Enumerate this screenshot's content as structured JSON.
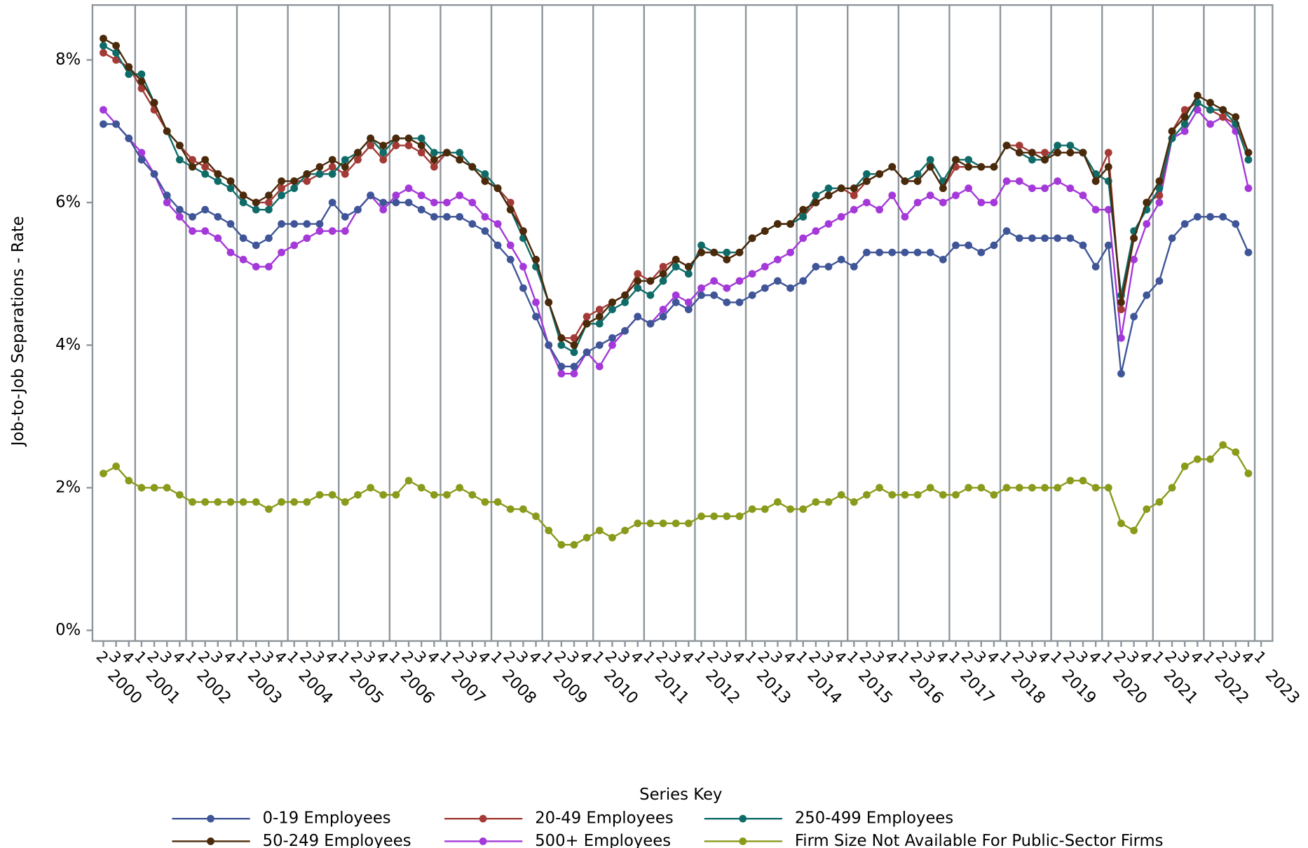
{
  "chart_data": {
    "type": "line",
    "y_label": "Job-to-Job Separations - Rate",
    "legend_title": "Series Key",
    "categories": [
      "2",
      "3",
      "4",
      "1",
      "2",
      "3",
      "4",
      "1",
      "2",
      "3",
      "4",
      "1",
      "2",
      "3",
      "4",
      "1",
      "2",
      "3",
      "4",
      "1",
      "2",
      "3",
      "4",
      "1",
      "2",
      "3",
      "4",
      "1",
      "2",
      "3",
      "4",
      "1",
      "2",
      "3",
      "4",
      "1",
      "2",
      "3",
      "4",
      "1",
      "2",
      "3",
      "4",
      "1",
      "2",
      "3",
      "4",
      "1",
      "2",
      "3",
      "4",
      "1",
      "2",
      "3",
      "4",
      "1",
      "2",
      "3",
      "4",
      "1",
      "2",
      "3",
      "4",
      "1",
      "2",
      "3",
      "4",
      "1",
      "2",
      "3",
      "4",
      "1",
      "2",
      "3",
      "4",
      "1",
      "2",
      "3",
      "4",
      "1",
      "2",
      "3",
      "4",
      "1",
      "2",
      "3",
      "4",
      "1",
      "2",
      "3",
      "4",
      "1"
    ],
    "years": [
      "2000",
      "2001",
      "2002",
      "2003",
      "2004",
      "2005",
      "2006",
      "2007",
      "2008",
      "2009",
      "2010",
      "2011",
      "2012",
      "2013",
      "2014",
      "2015",
      "2016",
      "2017",
      "2018",
      "2019",
      "2020",
      "2021",
      "2022",
      "2023"
    ],
    "ylim": [
      -0.15,
      8.77
    ],
    "yticks": [
      {
        "value": 0,
        "label": "0%"
      },
      {
        "value": 2,
        "label": "2%"
      },
      {
        "value": 4,
        "label": "4%"
      },
      {
        "value": 6,
        "label": "6%"
      },
      {
        "value": 8,
        "label": "8%"
      }
    ],
    "series": [
      {
        "name": "0-19 Employees",
        "color": "#3f5597",
        "values": [
          7.1,
          7.1,
          6.9,
          6.6,
          6.4,
          6.1,
          5.9,
          5.8,
          5.9,
          5.8,
          5.7,
          5.5,
          5.4,
          5.5,
          5.7,
          5.7,
          5.7,
          5.7,
          6.0,
          5.8,
          5.9,
          6.1,
          6.0,
          6.0,
          6.0,
          5.9,
          5.8,
          5.8,
          5.8,
          5.7,
          5.6,
          5.4,
          5.2,
          4.8,
          4.4,
          4.0,
          3.7,
          3.7,
          3.9,
          4.0,
          4.1,
          4.2,
          4.4,
          4.3,
          4.4,
          4.6,
          4.5,
          4.7,
          4.7,
          4.6,
          4.6,
          4.7,
          4.8,
          4.9,
          4.8,
          4.9,
          5.1,
          5.1,
          5.2,
          5.1,
          5.3,
          5.3,
          5.3,
          5.3,
          5.3,
          5.3,
          5.2,
          5.4,
          5.4,
          5.3,
          5.4,
          5.6,
          5.5,
          5.5,
          5.5,
          5.5,
          5.5,
          5.4,
          5.1,
          5.4,
          3.6,
          4.4,
          4.7,
          4.9,
          5.5,
          5.7,
          5.8,
          5.8,
          5.8,
          5.7,
          5.3,
          null
        ]
      },
      {
        "name": "20-49 Employees",
        "color": "#a33a36",
        "values": [
          8.1,
          8.0,
          7.9,
          7.6,
          7.3,
          7.0,
          6.8,
          6.6,
          6.5,
          6.4,
          6.3,
          6.1,
          6.0,
          6.0,
          6.2,
          6.3,
          6.3,
          6.4,
          6.5,
          6.4,
          6.6,
          6.8,
          6.6,
          6.8,
          6.8,
          6.7,
          6.5,
          6.7,
          6.6,
          6.5,
          6.3,
          6.2,
          6.0,
          5.6,
          5.2,
          4.6,
          4.1,
          4.1,
          4.4,
          4.5,
          4.6,
          4.7,
          5.0,
          4.9,
          5.1,
          5.2,
          5.1,
          5.3,
          5.3,
          5.2,
          5.3,
          5.5,
          5.6,
          5.7,
          5.7,
          5.8,
          6.0,
          6.1,
          6.2,
          6.1,
          6.3,
          6.4,
          6.5,
          6.3,
          6.3,
          6.5,
          6.2,
          6.5,
          6.5,
          6.5,
          6.5,
          6.8,
          6.8,
          6.7,
          6.7,
          6.7,
          6.7,
          6.7,
          6.3,
          6.7,
          4.5,
          5.5,
          6.0,
          6.1,
          7.0,
          7.3,
          7.4,
          7.3,
          7.2,
          7.1,
          6.7,
          null
        ]
      },
      {
        "name": "250-499 Employees",
        "color": "#0e6b68",
        "values": [
          8.2,
          8.1,
          7.8,
          7.8,
          7.4,
          7.0,
          6.6,
          6.5,
          6.4,
          6.3,
          6.2,
          6.0,
          5.9,
          5.9,
          6.1,
          6.2,
          6.4,
          6.4,
          6.4,
          6.6,
          6.7,
          6.9,
          6.7,
          6.9,
          6.9,
          6.9,
          6.7,
          6.7,
          6.7,
          6.5,
          6.4,
          6.2,
          5.9,
          5.5,
          5.1,
          4.6,
          4.0,
          3.9,
          4.3,
          4.3,
          4.5,
          4.6,
          4.8,
          4.7,
          4.9,
          5.1,
          5.0,
          5.4,
          5.3,
          5.3,
          5.3,
          5.5,
          5.6,
          5.7,
          5.7,
          5.8,
          6.1,
          6.2,
          6.2,
          6.2,
          6.4,
          6.4,
          6.5,
          6.3,
          6.4,
          6.6,
          6.3,
          6.6,
          6.6,
          6.5,
          6.5,
          6.8,
          6.7,
          6.6,
          6.6,
          6.8,
          6.8,
          6.7,
          6.4,
          6.3,
          4.7,
          5.6,
          5.9,
          6.2,
          6.9,
          7.1,
          7.4,
          7.3,
          7.3,
          7.1,
          6.6,
          null
        ]
      },
      {
        "name": "50-249 Employees",
        "color": "#4a2a0a",
        "values": [
          8.3,
          8.2,
          7.9,
          7.7,
          7.4,
          7.0,
          6.8,
          6.5,
          6.6,
          6.4,
          6.3,
          6.1,
          6.0,
          6.1,
          6.3,
          6.3,
          6.4,
          6.5,
          6.6,
          6.5,
          6.7,
          6.9,
          6.8,
          6.9,
          6.9,
          6.8,
          6.6,
          6.7,
          6.6,
          6.5,
          6.3,
          6.2,
          5.9,
          5.6,
          5.2,
          4.6,
          4.1,
          4.0,
          4.3,
          4.4,
          4.6,
          4.7,
          4.9,
          4.9,
          5.0,
          5.2,
          5.1,
          5.3,
          5.3,
          5.2,
          5.3,
          5.5,
          5.6,
          5.7,
          5.7,
          5.9,
          6.0,
          6.1,
          6.2,
          6.2,
          6.3,
          6.4,
          6.5,
          6.3,
          6.3,
          6.5,
          6.2,
          6.6,
          6.5,
          6.5,
          6.5,
          6.8,
          6.7,
          6.7,
          6.6,
          6.7,
          6.7,
          6.7,
          6.3,
          6.5,
          4.6,
          5.5,
          6.0,
          6.3,
          7.0,
          7.2,
          7.5,
          7.4,
          7.3,
          7.2,
          6.7,
          null
        ]
      },
      {
        "name": "500+ Employees",
        "color": "#a438d8",
        "values": [
          7.3,
          7.1,
          6.9,
          6.7,
          6.4,
          6.0,
          5.8,
          5.6,
          5.6,
          5.5,
          5.3,
          5.2,
          5.1,
          5.1,
          5.3,
          5.4,
          5.5,
          5.6,
          5.6,
          5.6,
          5.9,
          6.1,
          5.9,
          6.1,
          6.2,
          6.1,
          6.0,
          6.0,
          6.1,
          6.0,
          5.8,
          5.7,
          5.4,
          5.1,
          4.6,
          4.0,
          3.6,
          3.6,
          3.9,
          3.7,
          4.0,
          4.2,
          4.4,
          4.3,
          4.5,
          4.7,
          4.6,
          4.8,
          4.9,
          4.8,
          4.9,
          5.0,
          5.1,
          5.2,
          5.3,
          5.5,
          5.6,
          5.7,
          5.8,
          5.9,
          6.0,
          5.9,
          6.1,
          5.8,
          6.0,
          6.1,
          6.0,
          6.1,
          6.2,
          6.0,
          6.0,
          6.3,
          6.3,
          6.2,
          6.2,
          6.3,
          6.2,
          6.1,
          5.9,
          5.9,
          4.1,
          5.2,
          5.7,
          6.0,
          6.9,
          7.0,
          7.3,
          7.1,
          7.2,
          7.0,
          6.2,
          null
        ]
      },
      {
        "name": "Firm Size Not Available For Public-Sector Firms",
        "color": "#8a9a1b",
        "values": [
          2.2,
          2.3,
          2.1,
          2.0,
          2.0,
          2.0,
          1.9,
          1.8,
          1.8,
          1.8,
          1.8,
          1.8,
          1.8,
          1.7,
          1.8,
          1.8,
          1.8,
          1.9,
          1.9,
          1.8,
          1.9,
          2.0,
          1.9,
          1.9,
          2.1,
          2.0,
          1.9,
          1.9,
          2.0,
          1.9,
          1.8,
          1.8,
          1.7,
          1.7,
          1.6,
          1.4,
          1.2,
          1.2,
          1.3,
          1.4,
          1.3,
          1.4,
          1.5,
          1.5,
          1.5,
          1.5,
          1.5,
          1.6,
          1.6,
          1.6,
          1.6,
          1.7,
          1.7,
          1.8,
          1.7,
          1.7,
          1.8,
          1.8,
          1.9,
          1.8,
          1.9,
          2.0,
          1.9,
          1.9,
          1.9,
          2.0,
          1.9,
          1.9,
          2.0,
          2.0,
          1.9,
          2.0,
          2.0,
          2.0,
          2.0,
          2.0,
          2.1,
          2.1,
          2.0,
          2.0,
          1.5,
          1.4,
          1.7,
          1.8,
          2.0,
          2.3,
          2.4,
          2.4,
          2.6,
          2.5,
          2.2,
          null
        ]
      }
    ]
  }
}
